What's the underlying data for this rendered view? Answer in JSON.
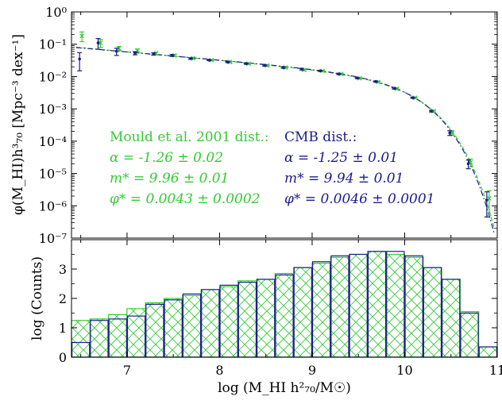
{
  "colors": {
    "green": "#33cc33",
    "blue": "#1c1c8c",
    "axis": "#000000"
  },
  "xlabel": "log (M_HI h²₇₀/M☉)",
  "xticks": [
    7,
    8,
    9,
    10,
    11
  ],
  "chart_data": [
    {
      "type": "scatter",
      "panel": "top",
      "ylabel": "φ(M_HI)h³₇₀ [Mpc⁻³ dex⁻¹]",
      "yscale": "log",
      "xlim": [
        6.4,
        11.0
      ],
      "ylim": [
        1e-07,
        1
      ],
      "yticks": [
        "10⁰",
        "10⁻¹",
        "10⁻²",
        "10⁻³",
        "10⁻⁴",
        "10⁻⁵",
        "10⁻⁶",
        "10⁻⁷"
      ],
      "series": [
        {
          "name": "Mould et al. 2001 dist.",
          "color": "#33cc33",
          "x": [
            6.5,
            6.7,
            6.9,
            7.1,
            7.3,
            7.5,
            7.7,
            7.9,
            8.1,
            8.3,
            8.5,
            8.7,
            8.9,
            9.1,
            9.3,
            9.5,
            9.7,
            9.9,
            10.1,
            10.3,
            10.5,
            10.7,
            10.9
          ],
          "y": [
            0.18,
            0.11,
            0.075,
            0.065,
            0.052,
            0.045,
            0.037,
            0.032,
            0.028,
            0.025,
            0.022,
            0.019,
            0.016,
            0.015,
            0.012,
            0.0088,
            0.0068,
            0.0042,
            0.0022,
            0.00085,
            0.00018,
            2.2e-05,
            1.7e-06
          ],
          "yerr": [
            0.06,
            0.03,
            0.01,
            0.006,
            0.005,
            0.003,
            0.002,
            0.001,
            0.001,
            0.001,
            0.001,
            0.001,
            0.001,
            0.0005,
            0.0005,
            0.0004,
            0.0003,
            0.0002,
            0.0001,
            5e-05,
            3e-05,
            6e-06,
            1.2e-06
          ]
        },
        {
          "name": "CMB dist.",
          "color": "#1c1c8c",
          "x": [
            6.5,
            6.7,
            6.9,
            7.1,
            7.3,
            7.5,
            7.7,
            7.9,
            8.1,
            8.3,
            8.5,
            8.7,
            8.9,
            9.1,
            9.3,
            9.5,
            9.7,
            9.9,
            10.1,
            10.3,
            10.5,
            10.7,
            10.9
          ],
          "y": [
            0.035,
            0.11,
            0.06,
            0.053,
            0.05,
            0.045,
            0.036,
            0.032,
            0.028,
            0.025,
            0.022,
            0.019,
            0.017,
            0.015,
            0.012,
            0.009,
            0.007,
            0.0043,
            0.0022,
            0.00085,
            0.00018,
            2e-05,
            1.5e-06
          ],
          "yerr": [
            0.02,
            0.04,
            0.015,
            0.006,
            0.004,
            0.003,
            0.002,
            0.001,
            0.001,
            0.001,
            0.001,
            0.001,
            0.001,
            0.0005,
            0.0005,
            0.0004,
            0.0003,
            0.0002,
            0.0001,
            5e-05,
            3e-05,
            6e-06,
            1.2e-06
          ]
        }
      ],
      "fits": [
        {
          "name": "Mould et al. 2001 dist.",
          "style": "dashed",
          "alpha": -1.26,
          "mstar": 9.96,
          "phistar": 0.0043
        },
        {
          "name": "CMB dist.",
          "style": "dash-dot",
          "alpha": -1.25,
          "mstar": 9.94,
          "phistar": 0.0046
        }
      ],
      "annotations": {
        "mould": {
          "heading": "Mould et al. 2001 dist.:",
          "alpha": "α = -1.26 ± 0.02",
          "mstar": "m* = 9.96 ± 0.01",
          "phistar": "φ* = 0.0043 ± 0.0002"
        },
        "cmb": {
          "heading": "CMB dist.:",
          "alpha": "α = -1.25 ± 0.01",
          "mstar": "m* = 9.94 ± 0.01",
          "phistar": "φ* = 0.0046 ± 0.0001"
        }
      }
    },
    {
      "type": "histogram",
      "panel": "bottom",
      "ylabel": "log (Counts)",
      "xlim": [
        6.4,
        11.0
      ],
      "ylim": [
        0,
        4
      ],
      "yticks": [
        0,
        1,
        2,
        3
      ],
      "bin_width": 0.2,
      "bin_starts": [
        6.4,
        6.6,
        6.8,
        7.0,
        7.2,
        7.4,
        7.6,
        7.8,
        8.0,
        8.2,
        8.4,
        8.6,
        8.8,
        9.0,
        9.2,
        9.4,
        9.6,
        9.8,
        10.0,
        10.2,
        10.4,
        10.6,
        10.8
      ],
      "series": [
        {
          "name": "Mould et al. 2001 dist.",
          "color": "#33cc33",
          "hatch": "cross",
          "values": [
            1.25,
            1.3,
            1.45,
            1.65,
            1.85,
            2.0,
            2.1,
            2.3,
            2.4,
            2.6,
            2.65,
            2.85,
            3.05,
            3.2,
            3.4,
            3.5,
            3.6,
            3.5,
            3.4,
            3.05,
            2.65,
            1.55,
            0.35
          ]
        },
        {
          "name": "CMB dist.",
          "color": "#1c1c8c",
          "hatch": "none",
          "values": [
            0.5,
            1.25,
            1.3,
            1.4,
            1.8,
            1.95,
            2.15,
            2.3,
            2.45,
            2.55,
            2.65,
            2.8,
            3.05,
            3.25,
            3.45,
            3.5,
            3.6,
            3.6,
            3.45,
            3.05,
            2.65,
            1.5,
            0.35
          ]
        }
      ]
    }
  ]
}
